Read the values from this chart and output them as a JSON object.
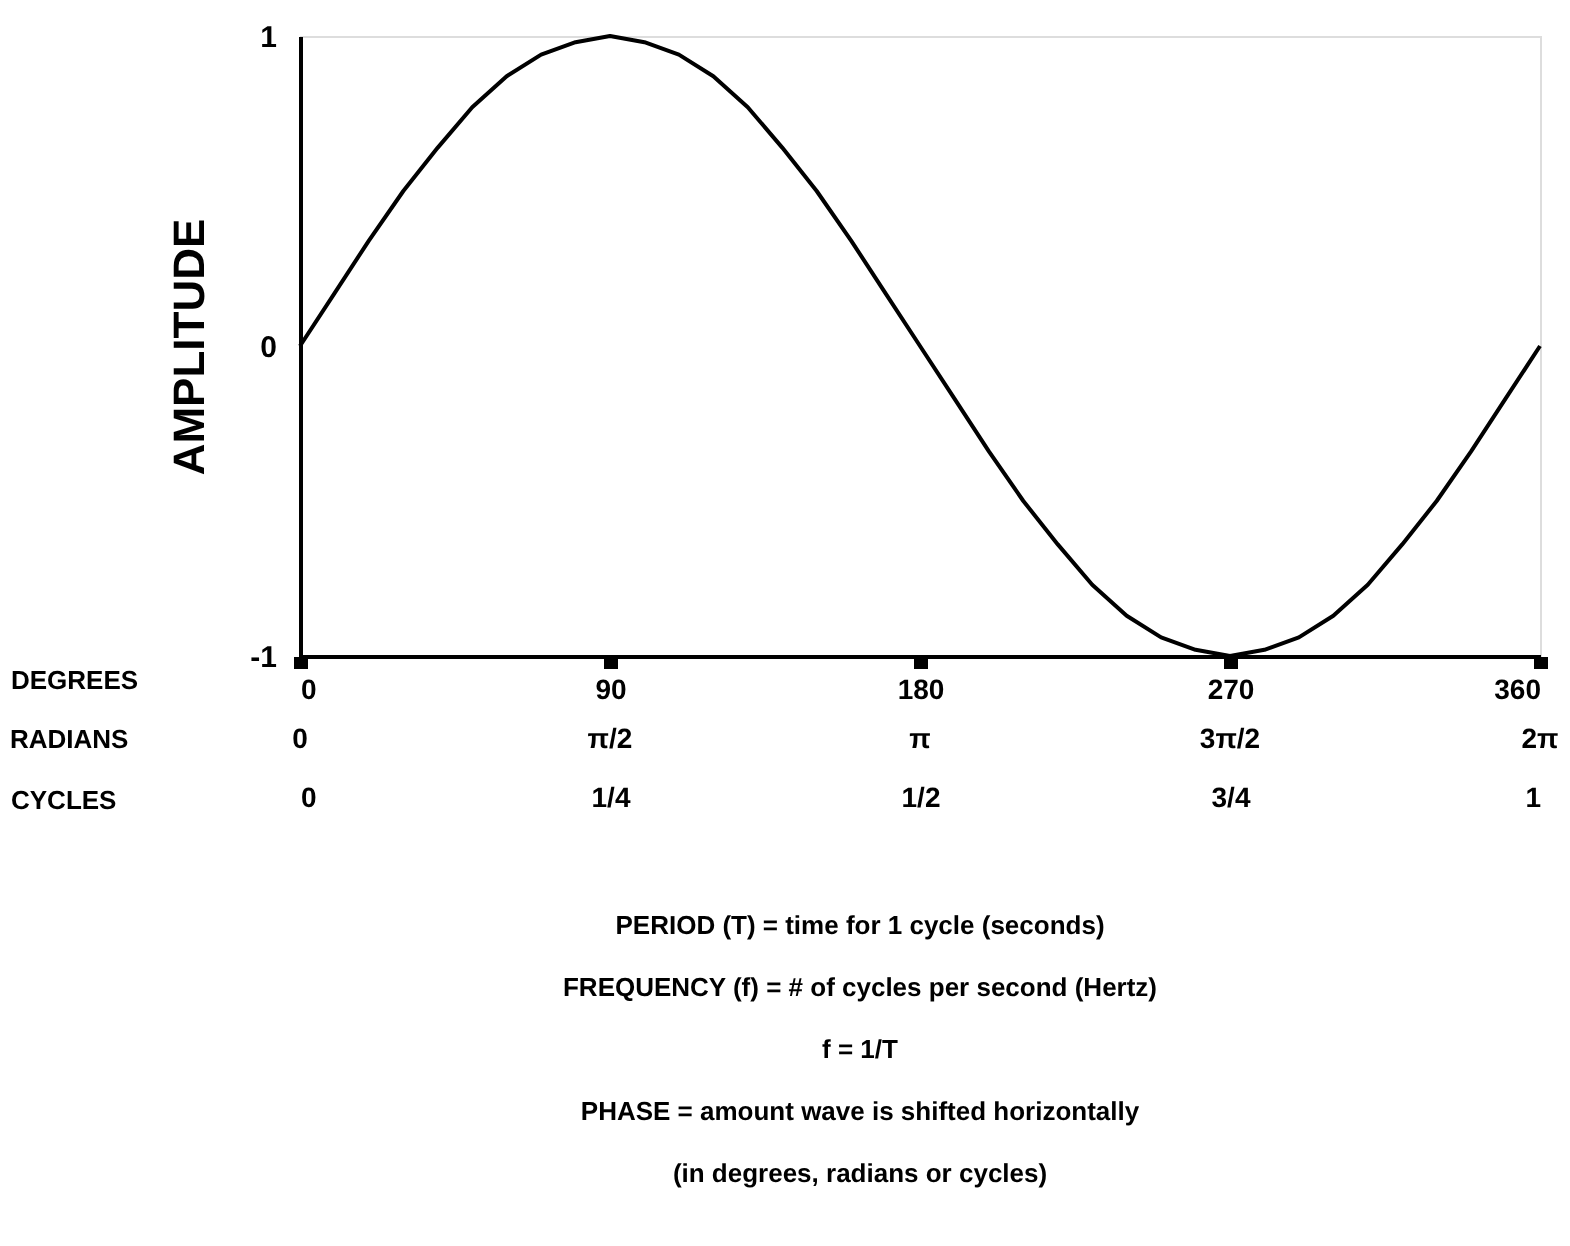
{
  "chart_data": {
    "type": "line",
    "ylabel": "AMPLITUDE",
    "xlabel": "DEGREES",
    "x2label": "CYCLES",
    "x": [
      0,
      10,
      20,
      30,
      40,
      50,
      60,
      70,
      80,
      90,
      100,
      110,
      120,
      130,
      140,
      150,
      160,
      170,
      180,
      190,
      200,
      210,
      220,
      230,
      240,
      250,
      260,
      270,
      280,
      290,
      300,
      310,
      320,
      330,
      340,
      350,
      360
    ],
    "series": [
      {
        "color": "#000000",
        "values": [
          0,
          0.17,
          0.34,
          0.5,
          0.64,
          0.77,
          0.87,
          0.94,
          0.98,
          1,
          0.98,
          0.94,
          0.87,
          0.77,
          0.64,
          0.5,
          0.34,
          0.17,
          0,
          -0.17,
          -0.34,
          -0.5,
          -0.64,
          -0.77,
          -0.87,
          -0.94,
          -0.98,
          -1,
          -0.98,
          -0.94,
          -0.87,
          -0.77,
          -0.64,
          -0.5,
          -0.34,
          -0.17,
          0
        ]
      }
    ],
    "xlim": [
      0,
      360
    ],
    "xticks": [
      0,
      90,
      180,
      270,
      360
    ],
    "x2lim": [
      0,
      1
    ],
    "x2ticks": [
      0,
      {
        "value": 0.25,
        "label": "1/4"
      },
      {
        "value": 0.5,
        "label": "1/2"
      },
      {
        "value": 0.75,
        "label": "3/4"
      },
      1
    ],
    "ylim": [
      -1,
      1
    ],
    "yticks": [
      {
        "value": -1,
        "label": "-1"
      },
      0,
      1
    ],
    "grid": false,
    "marker": "none",
    "line_style": "solid",
    "annotations": [
      "RADIANS",
      "0",
      "π/2",
      "π",
      "3π/2",
      "2π",
      "PERIOD (T) = time for 1 cycle (seconds)",
      "FREQUENCY (f) = # of cycles per second (Hertz)",
      "f = 1/T",
      "PHASE = amount wave is shifted horizontally",
      "(in degrees, radians or cycles)"
    ]
  }
}
